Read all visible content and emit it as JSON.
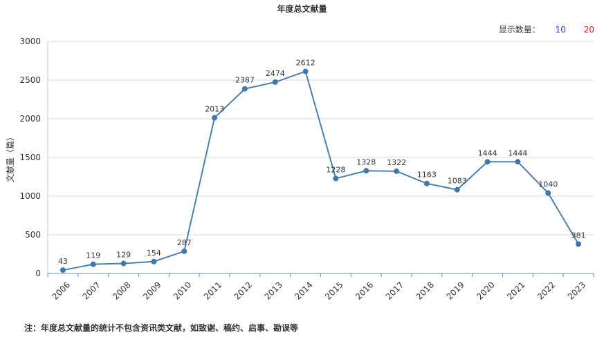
{
  "header": {
    "count_label": "显示数量：",
    "count_options": [
      "10",
      "20"
    ]
  },
  "footnote": "注：年度总文献量的统计不包含资讯类文献，如致谢、稿约、启事、勘误等",
  "colors": {
    "line": "#4a7fb0",
    "point": "#3f78ad",
    "grid": "#dddddd",
    "axis": "#5b8fbf",
    "option_10": "#2040c0",
    "option_20": "#d02020"
  },
  "chart_data": {
    "type": "line",
    "title": "年度总文献量",
    "ylabel": "文献量（篇）",
    "xlabel": "",
    "ylim": [
      0,
      3000
    ],
    "yticks": [
      0,
      500,
      1000,
      1500,
      2000,
      2500,
      3000
    ],
    "grid": true,
    "categories": [
      "2006",
      "2007",
      "2008",
      "2009",
      "2010",
      "2011",
      "2012",
      "2013",
      "2014",
      "2015",
      "2016",
      "2017",
      "2018",
      "2019",
      "2020",
      "2021",
      "2022",
      "2023"
    ],
    "series": [
      {
        "values": [
          43,
          119,
          129,
          154,
          287,
          2013,
          2387,
          2474,
          2612,
          1228,
          1328,
          1322,
          1163,
          1083,
          1444,
          1444,
          1040,
          381
        ]
      }
    ]
  }
}
